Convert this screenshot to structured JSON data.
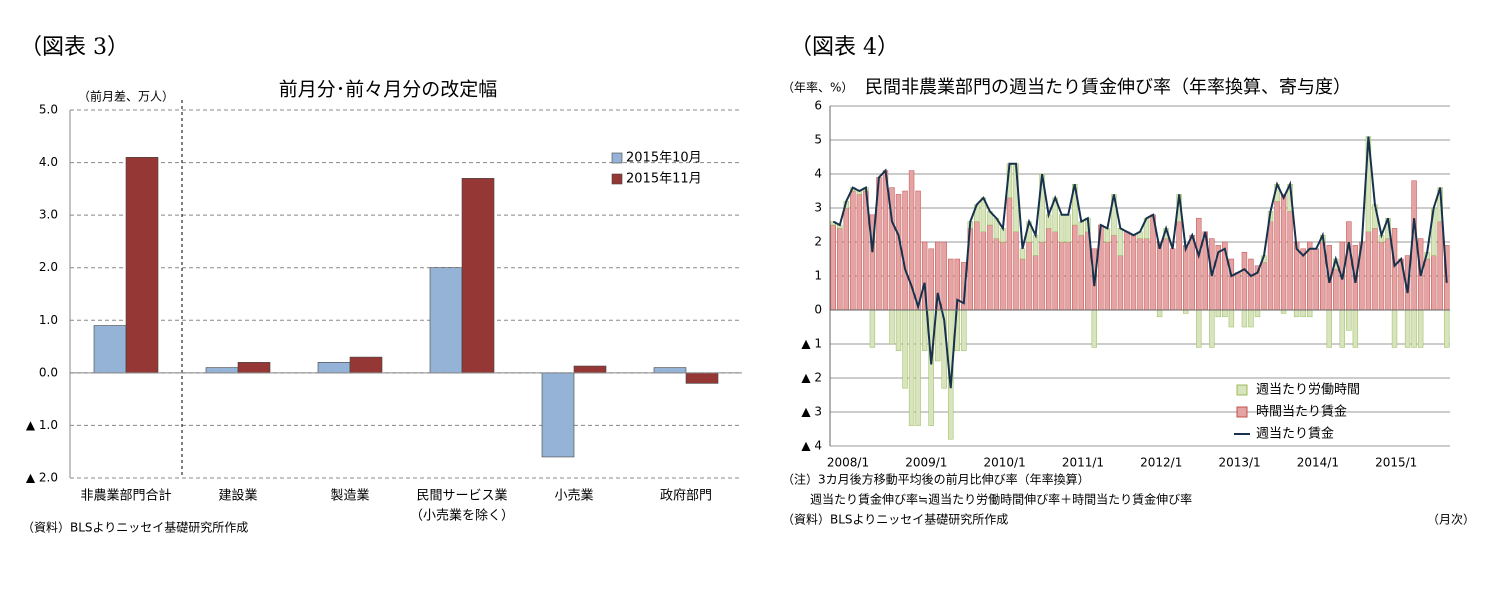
{
  "chart_data": [
    {
      "type": "bar",
      "panel_label": "（図表 3）",
      "title": "前月分･前々月分の改定幅",
      "y_label": "（前月差、万人）",
      "categories": [
        "非農業部門合計",
        "建設業",
        "製造業",
        "民間サービス業",
        "小売業",
        "政府部門"
      ],
      "category_sublabels": [
        null,
        null,
        null,
        "（小売業を除く）",
        null,
        null
      ],
      "series": [
        {
          "name": "2015年10月",
          "color": "#95b3d7",
          "values": [
            0.9,
            0.1,
            0.2,
            2.0,
            -1.6,
            0.1
          ]
        },
        {
          "name": "2015年11月",
          "color": "#953735",
          "values": [
            4.1,
            0.2,
            0.3,
            3.7,
            0.13,
            -0.2
          ]
        }
      ],
      "ylim": [
        -2,
        5
      ],
      "yticks": [
        {
          "value": 5,
          "label": "5.0"
        },
        {
          "value": 4,
          "label": "4.0"
        },
        {
          "value": 3,
          "label": "3.0"
        },
        {
          "value": 2,
          "label": "2.0"
        },
        {
          "value": 1,
          "label": "1.0"
        },
        {
          "value": 0,
          "label": "0.0"
        },
        {
          "value": -1,
          "label": "▲ 1.0"
        },
        {
          "value": -2,
          "label": "▲ 2.0"
        }
      ],
      "grid": true,
      "legend": "upper right",
      "source": "（資料）BLSよりニッセイ基礎研究所作成"
    },
    {
      "type": "bar_line",
      "panel_label": "（図表 4）",
      "title": "民間非農業部門の週当たり賃金伸び率（年率換算、寄与度）",
      "y_label": "（年率、%）",
      "x_label": "（月次）",
      "categories": [
        "2008/1",
        null,
        null,
        null,
        null,
        null,
        null,
        null,
        null,
        null,
        null,
        null,
        "2009/1",
        null,
        null,
        null,
        null,
        null,
        null,
        null,
        null,
        null,
        null,
        null,
        "2010/1",
        null,
        null,
        null,
        null,
        null,
        null,
        null,
        null,
        null,
        null,
        null,
        "2011/1",
        null,
        null,
        null,
        null,
        null,
        null,
        null,
        null,
        null,
        null,
        null,
        "2012/1",
        null,
        null,
        null,
        null,
        null,
        null,
        null,
        null,
        null,
        null,
        null,
        "2013/1",
        null,
        null,
        null,
        null,
        null,
        null,
        null,
        null,
        null,
        null,
        null,
        "2014/1",
        null,
        null,
        null,
        null,
        null,
        null,
        null,
        null,
        null,
        null,
        null,
        "2015/1",
        null,
        null,
        null,
        null,
        null,
        null,
        null,
        null,
        null,
        null
      ],
      "series": [
        {
          "name": "週当たり労働時間",
          "color": "#d7e4bd",
          "values": [
            0.1,
            0.1,
            0.2,
            0.1,
            0.1,
            0.1,
            -1.1,
            0,
            0,
            -1.0,
            -1.2,
            -2.3,
            -3.4,
            -3.4,
            -1.2,
            -3.4,
            -1.5,
            -2.3,
            -3.8,
            -1.2,
            -1.2,
            0.2,
            0.5,
            1.0,
            0.4,
            0.6,
            0.4,
            1.0,
            2.0,
            0.3,
            0.6,
            0.6,
            2.0,
            0.4,
            1.0,
            0.8,
            0.8,
            1.2,
            0.4,
            0.4,
            -1.1,
            0,
            0.4,
            1.2,
            0.8,
            0,
            0,
            0.2,
            0.6,
            0,
            -0.2,
            0.3,
            0,
            0.8,
            -0.1,
            0,
            -1.1,
            0,
            -1.1,
            -0.2,
            -0.2,
            -0.5,
            0,
            -0.5,
            -0.5,
            -0.2,
            0.2,
            0.3,
            0.5,
            -0.1,
            0.8,
            -0.2,
            -0.2,
            -0.2,
            0,
            0.2,
            -1.1,
            0.3,
            -1.1,
            -0.6,
            -1.1,
            0,
            2.8,
            0.7,
            0.2,
            0.6,
            -1.1,
            0,
            -1.1,
            -1.1,
            -1.1,
            0.2,
            1.4,
            1.0,
            -1.1
          ]
        },
        {
          "name": "時間当たり賃金",
          "color": "#e6a3a3",
          "values": [
            2.5,
            2.4,
            3.0,
            3.5,
            3.4,
            3.5,
            2.8,
            3.9,
            4.1,
            3.6,
            3.4,
            3.5,
            4.1,
            3.5,
            2.0,
            1.8,
            2.0,
            2.0,
            1.5,
            1.5,
            1.4,
            2.4,
            2.6,
            2.3,
            2.5,
            2.1,
            2.0,
            3.3,
            2.3,
            1.5,
            2.0,
            1.6,
            2.0,
            2.4,
            2.3,
            2.0,
            2.0,
            2.5,
            2.2,
            2.3,
            1.8,
            2.5,
            2.0,
            2.2,
            1.6,
            2.3,
            2.2,
            2.1,
            2.1,
            2.8,
            2.0,
            2.1,
            1.8,
            2.6,
            1.9,
            2.2,
            2.7,
            2.3,
            2.1,
            1.9,
            2.0,
            1.5,
            1.1,
            1.7,
            1.5,
            1.3,
            1.4,
            2.6,
            3.2,
            3.4,
            2.9,
            2.0,
            1.8,
            2.0,
            1.8,
            2.0,
            1.9,
            1.2,
            2.0,
            2.6,
            1.9,
            2.0,
            2.3,
            2.4,
            2.0,
            2.1,
            2.4,
            1.5,
            1.6,
            3.8,
            2.1,
            1.5,
            1.6,
            2.6,
            1.9
          ]
        },
        {
          "name": "週当たり賃金",
          "color": "#17324d",
          "values": [
            2.6,
            2.5,
            3.2,
            3.6,
            3.5,
            3.6,
            1.7,
            3.9,
            4.1,
            2.6,
            2.2,
            1.2,
            0.7,
            0.1,
            0.8,
            -1.6,
            0.5,
            -0.3,
            -2.3,
            0.3,
            0.2,
            2.6,
            3.1,
            3.3,
            2.9,
            2.7,
            2.4,
            4.3,
            4.3,
            1.8,
            2.6,
            2.2,
            4.0,
            2.8,
            3.3,
            2.8,
            2.8,
            3.7,
            2.6,
            2.7,
            0.7,
            2.5,
            2.4,
            3.4,
            2.4,
            2.3,
            2.2,
            2.3,
            2.7,
            2.8,
            1.8,
            2.4,
            1.8,
            3.4,
            1.8,
            2.2,
            1.6,
            2.3,
            1.0,
            1.7,
            1.8,
            1.0,
            1.1,
            1.2,
            1.0,
            1.1,
            1.6,
            2.9,
            3.7,
            3.3,
            3.7,
            1.8,
            1.6,
            1.8,
            1.8,
            2.2,
            0.8,
            1.5,
            0.9,
            2.0,
            0.8,
            2.0,
            5.1,
            3.1,
            2.2,
            2.7,
            1.3,
            1.5,
            0.5,
            2.7,
            1.0,
            1.7,
            3.0,
            3.6,
            0.8
          ]
        }
      ],
      "ylim": [
        -4,
        6
      ],
      "yticks": [
        6,
        5,
        4,
        3,
        2,
        1,
        0,
        {
          "value": -1,
          "label": "▲ 1"
        },
        {
          "value": -2,
          "label": "▲ 2"
        },
        {
          "value": -3,
          "label": "▲ 3"
        },
        {
          "value": -4,
          "label": "▲ 4"
        }
      ],
      "grid": true,
      "legend": "lower right",
      "notes": [
        "（注）3カ月後方移動平均後の前月比伸び率（年率換算）",
        "週当たり賃金伸び率≒週当たり労働時間伸び率＋時間当たり賃金伸び率"
      ],
      "source": "（資料）BLSよりニッセイ基礎研究所作成"
    }
  ]
}
